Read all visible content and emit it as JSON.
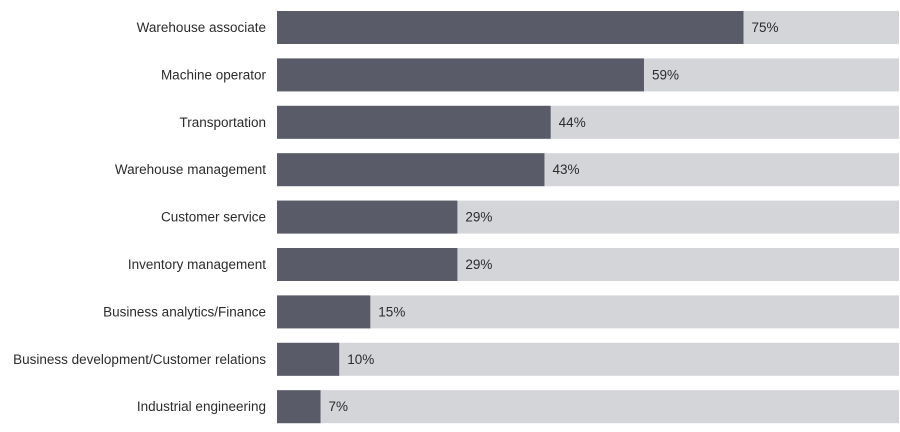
{
  "chart_data": {
    "type": "bar",
    "orientation": "horizontal",
    "categories": [
      "Warehouse associate",
      "Machine operator",
      "Transportation",
      "Warehouse management",
      "Customer service",
      "Inventory management",
      "Business analytics/Finance",
      "Business development/Customer relations",
      "Industrial engineering"
    ],
    "values": [
      75,
      59,
      44,
      43,
      29,
      29,
      15,
      10,
      7
    ],
    "value_labels": [
      "75%",
      "59%",
      "44%",
      "43%",
      "29%",
      "29%",
      "15%",
      "10%",
      "7%"
    ],
    "xlim": [
      0,
      100
    ],
    "title": "",
    "xlabel": "",
    "ylabel": "",
    "grid": false,
    "legend": "none",
    "colors": {
      "bar": "#595c68",
      "track": "#d3d5d9",
      "text": "#2b2b2b"
    }
  }
}
